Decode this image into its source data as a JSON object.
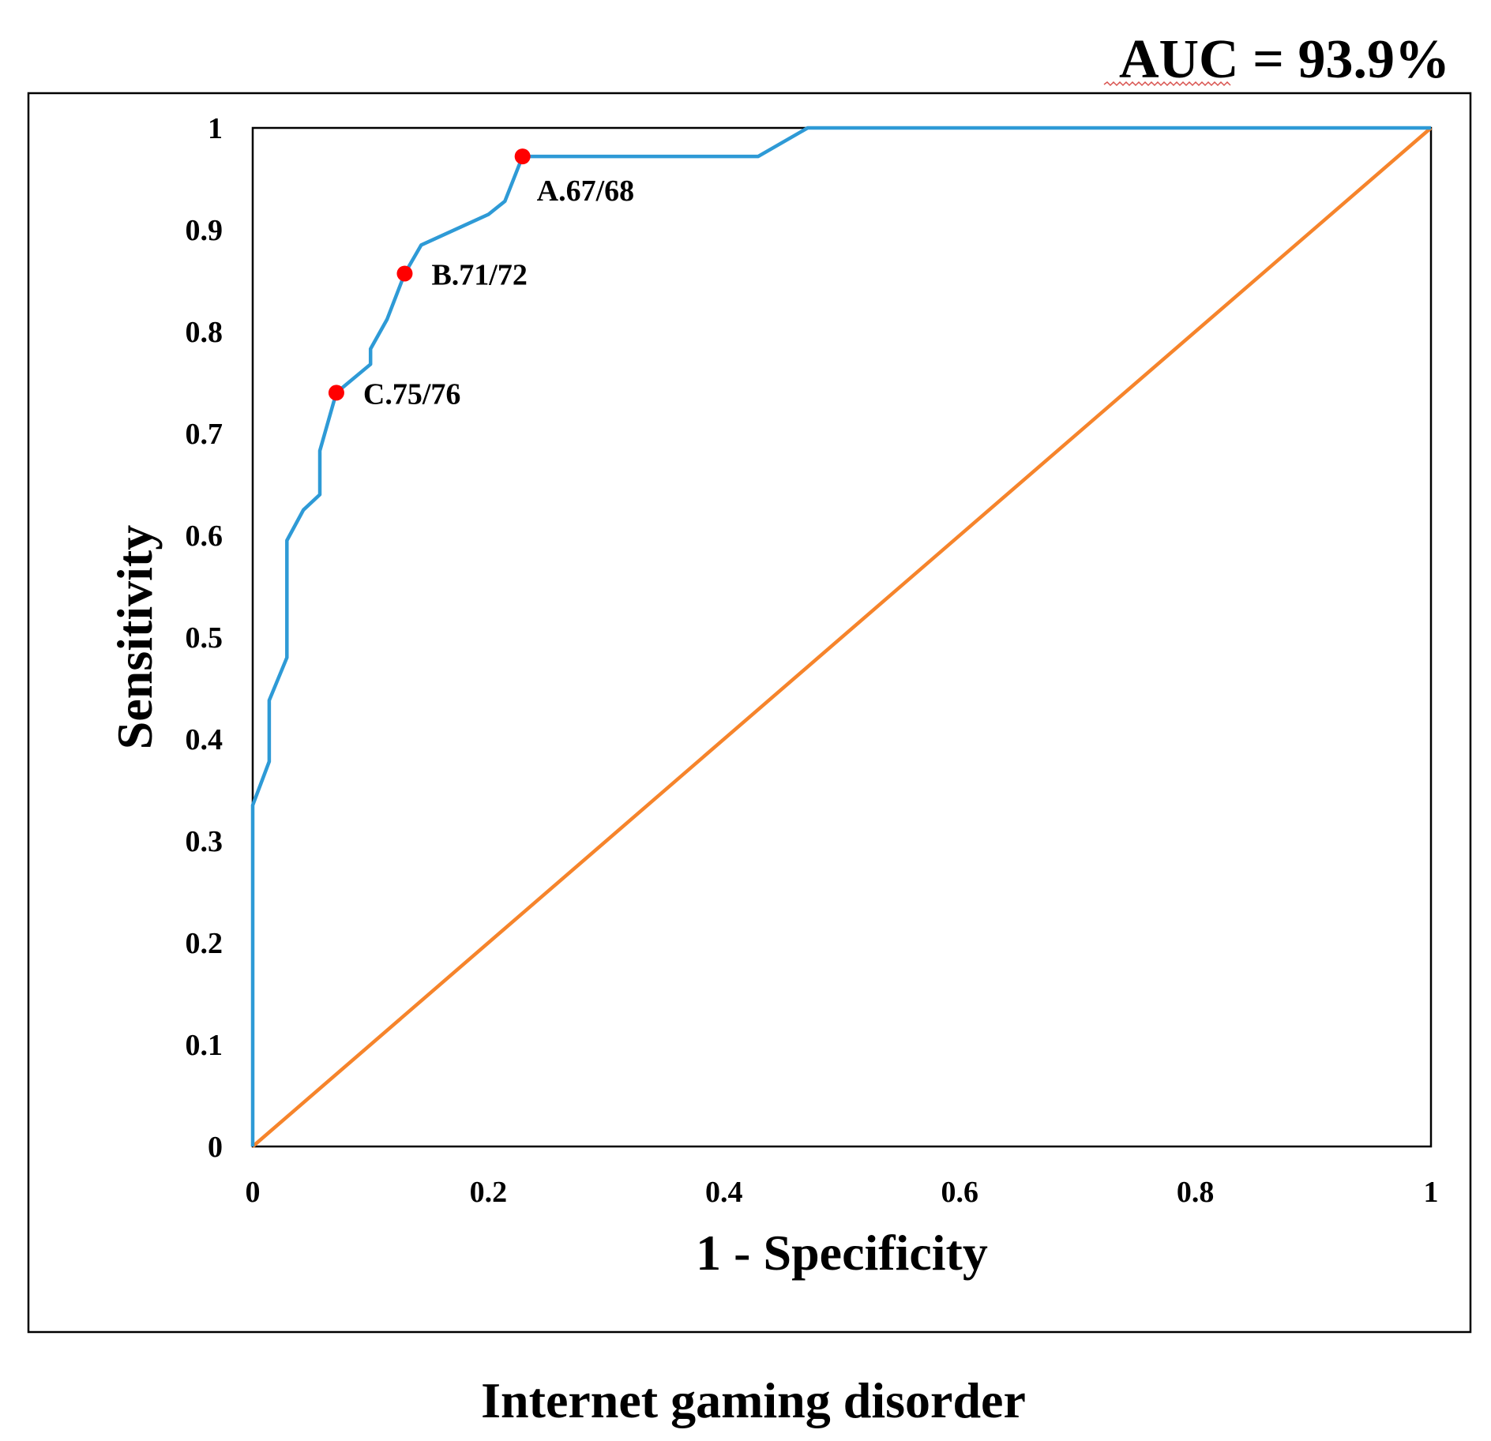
{
  "chart_data": {
    "type": "line",
    "title": "AUC = 93.9%",
    "caption": "Internet gaming disorder",
    "xlabel": "1 - Specificity",
    "ylabel": "Sensitivity",
    "xlim": [
      0,
      1
    ],
    "ylim": [
      0,
      1
    ],
    "x_ticks": [
      0,
      0.2,
      0.4,
      0.6,
      0.8,
      1
    ],
    "x_tick_labels": [
      "0",
      "0.2",
      "0.4",
      "0.6",
      "0.8",
      "1"
    ],
    "y_ticks": [
      0,
      0.1,
      0.2,
      0.3,
      0.4,
      0.5,
      0.6,
      0.7,
      0.8,
      0.9,
      1
    ],
    "y_tick_labels": [
      "0",
      "0.1",
      "0.2",
      "0.3",
      "0.4",
      "0.5",
      "0.6",
      "0.7",
      "0.8",
      "0.9",
      "1"
    ],
    "grid": false,
    "series": [
      {
        "name": "ROC curve",
        "color": "#2e9ad6",
        "x": [
          0,
          0,
          0.014,
          0.014,
          0.029,
          0.029,
          0.043,
          0.057,
          0.057,
          0.071,
          0.1,
          0.1,
          0.114,
          0.129,
          0.143,
          0.2,
          0.214,
          0.229,
          0.429,
          0.471,
          1
        ],
        "y": [
          0,
          0.335,
          0.378,
          0.438,
          0.48,
          0.595,
          0.625,
          0.64,
          0.683,
          0.74,
          0.768,
          0.783,
          0.812,
          0.857,
          0.885,
          0.915,
          0.928,
          0.972,
          0.972,
          1,
          1
        ]
      },
      {
        "name": "Reference line",
        "color": "#f6842b",
        "x": [
          0,
          1
        ],
        "y": [
          0,
          1
        ]
      }
    ],
    "cutoff_points": [
      {
        "label": "A.67/68",
        "x": 0.229,
        "y": 0.972,
        "color": "#ff0000"
      },
      {
        "label": "B.71/72",
        "x": 0.129,
        "y": 0.857,
        "color": "#ff0000"
      },
      {
        "label": "C.75/76",
        "x": 0.071,
        "y": 0.74,
        "color": "#ff0000"
      }
    ]
  }
}
